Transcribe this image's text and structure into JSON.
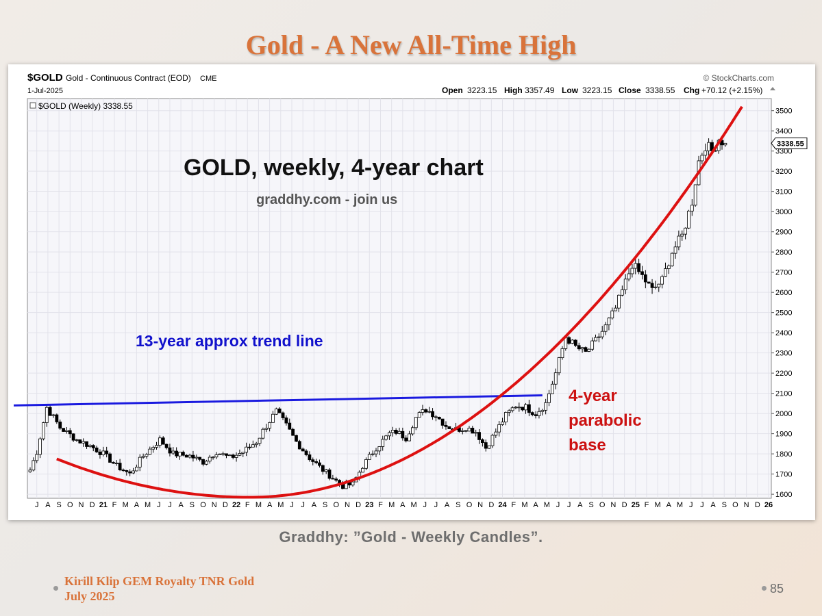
{
  "slide": {
    "title": "Gold - A New All-Time High",
    "caption": "Graddhy: ”Gold - Weekly Candles”.",
    "footer_line1": "Kirill Klip GEM Royalty TNR Gold",
    "footer_line2": "July 2025",
    "page_number": "85"
  },
  "chart_header": {
    "symbol": "$GOLD",
    "description": "Gold - Continuous Contract (EOD)",
    "exchange": "CME",
    "watermark": "© StockCharts.com",
    "date": "1-Jul-2025",
    "open_label": "Open",
    "open": "3223.15",
    "high_label": "High",
    "high": "3357.49",
    "low_label": "Low",
    "low": "3223.15",
    "close_label": "Close",
    "close": "3338.55",
    "chg_label": "Chg",
    "chg": "+70.12 (+2.15%)",
    "legend": "$GOLD (Weekly) 3338.55",
    "price_tag": "3338.55"
  },
  "annotations": {
    "headline": "GOLD, weekly, 4-year chart",
    "subline": "graddhy.com - join us",
    "trend_label": "13-year approx trend line",
    "base_label_1": "4-year",
    "base_label_2": "parabolic",
    "base_label_3": "base"
  },
  "colors": {
    "title": "#d9733a",
    "trend_line": "#1a1adf",
    "parabola": "#dd1111",
    "annotation_red": "#cc1111",
    "annotation_blue": "#1111cc",
    "plot_bg": "#f6f6fa"
  },
  "chart_data": {
    "type": "line",
    "series_style": "candlestick",
    "ylim": [
      1580,
      3560
    ],
    "yticks": [
      1600,
      1700,
      1800,
      1900,
      2000,
      2100,
      2200,
      2300,
      2400,
      2500,
      2600,
      2700,
      2800,
      2900,
      3000,
      3100,
      3200,
      3300,
      3400,
      3500
    ],
    "x_tick_labels": [
      "J",
      "A",
      "S",
      "O",
      "N",
      "D",
      "21",
      "F",
      "M",
      "A",
      "M",
      "J",
      "J",
      "A",
      "S",
      "O",
      "N",
      "D",
      "22",
      "F",
      "M",
      "A",
      "M",
      "J",
      "J",
      "A",
      "S",
      "O",
      "N",
      "D",
      "23",
      "F",
      "M",
      "A",
      "M",
      "J",
      "J",
      "A",
      "S",
      "O",
      "N",
      "D",
      "24",
      "F",
      "M",
      "A",
      "M",
      "J",
      "J",
      "A",
      "S",
      "O",
      "N",
      "D",
      "25",
      "F",
      "M",
      "A",
      "M",
      "J",
      "J",
      "A",
      "S",
      "O",
      "N",
      "D",
      "26"
    ],
    "price_path": [
      [
        0,
        1720
      ],
      [
        2,
        1810
      ],
      [
        5,
        2030
      ],
      [
        9,
        1930
      ],
      [
        14,
        1870
      ],
      [
        18,
        1840
      ],
      [
        22,
        1800
      ],
      [
        26,
        1740
      ],
      [
        30,
        1700
      ],
      [
        34,
        1790
      ],
      [
        39,
        1870
      ],
      [
        43,
        1800
      ],
      [
        48,
        1790
      ],
      [
        52,
        1760
      ],
      [
        56,
        1810
      ],
      [
        60,
        1780
      ],
      [
        64,
        1810
      ],
      [
        68,
        1860
      ],
      [
        71,
        1940
      ],
      [
        74,
        2010
      ],
      [
        77,
        1940
      ],
      [
        80,
        1860
      ],
      [
        84,
        1780
      ],
      [
        88,
        1720
      ],
      [
        91,
        1680
      ],
      [
        94,
        1640
      ],
      [
        97,
        1650
      ],
      [
        100,
        1740
      ],
      [
        104,
        1830
      ],
      [
        108,
        1900
      ],
      [
        110,
        1910
      ],
      [
        113,
        1880
      ],
      [
        116,
        1980
      ],
      [
        119,
        2020
      ],
      [
        122,
        1990
      ],
      [
        125,
        1940
      ],
      [
        128,
        1920
      ],
      [
        131,
        1930
      ],
      [
        134,
        1910
      ],
      [
        137,
        1830
      ],
      [
        140,
        1910
      ],
      [
        143,
        1990
      ],
      [
        146,
        2040
      ],
      [
        149,
        2030
      ],
      [
        152,
        2000
      ],
      [
        155,
        2050
      ],
      [
        158,
        2200
      ],
      [
        161,
        2380
      ],
      [
        164,
        2330
      ],
      [
        167,
        2300
      ],
      [
        170,
        2360
      ],
      [
        173,
        2430
      ],
      [
        176,
        2520
      ],
      [
        179,
        2650
      ],
      [
        181,
        2740
      ],
      [
        184,
        2680
      ],
      [
        187,
        2610
      ],
      [
        190,
        2660
      ],
      [
        193,
        2800
      ],
      [
        196,
        2880
      ],
      [
        199,
        3050
      ],
      [
        201,
        3250
      ],
      [
        203,
        3330
      ],
      [
        205,
        3300
      ],
      [
        207,
        3360
      ],
      [
        209,
        3338.55
      ]
    ],
    "trend_line": {
      "name": "13-year approx trend line",
      "from": [
        -3,
        2040
      ],
      "to": [
        154,
        2090
      ]
    },
    "parabolic_base": {
      "name": "4-year parabolic base",
      "vertex": [
        66,
        1585
      ],
      "left_end": [
        8,
        1775
      ],
      "right_end": [
        214,
        3520
      ]
    }
  }
}
